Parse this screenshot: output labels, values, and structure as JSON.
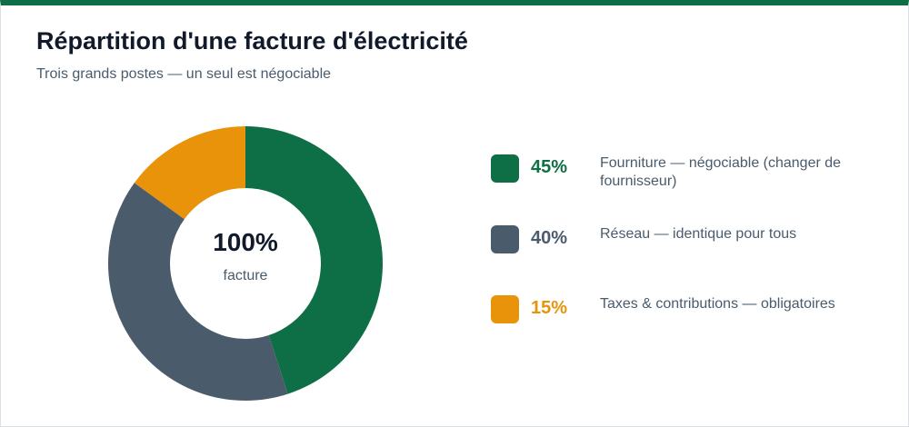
{
  "title": "Répartition d'une facture d'électricité",
  "subtitle": "Trois grands postes — un seul est négociable",
  "center": {
    "value": "100%",
    "label": "facture"
  },
  "chart_data": {
    "type": "pie",
    "variant": "donut",
    "categories": [
      "Fourniture",
      "Réseau",
      "Taxes & contributions"
    ],
    "values": [
      45,
      40,
      15
    ],
    "colors": [
      "#0e6e46",
      "#4a5b6c",
      "#e8930a"
    ],
    "legend_placement": "right",
    "legend": [
      {
        "pct": "45%",
        "desc": "Fourniture — négociable (changer de fournisseur)",
        "color": "#0e6e46"
      },
      {
        "pct": "40%",
        "desc": "Réseau — identique pour tous",
        "color": "#4a5b6c"
      },
      {
        "pct": "15%",
        "desc": "Taxes & contributions — obligatoires",
        "color": "#e8930a"
      }
    ]
  }
}
